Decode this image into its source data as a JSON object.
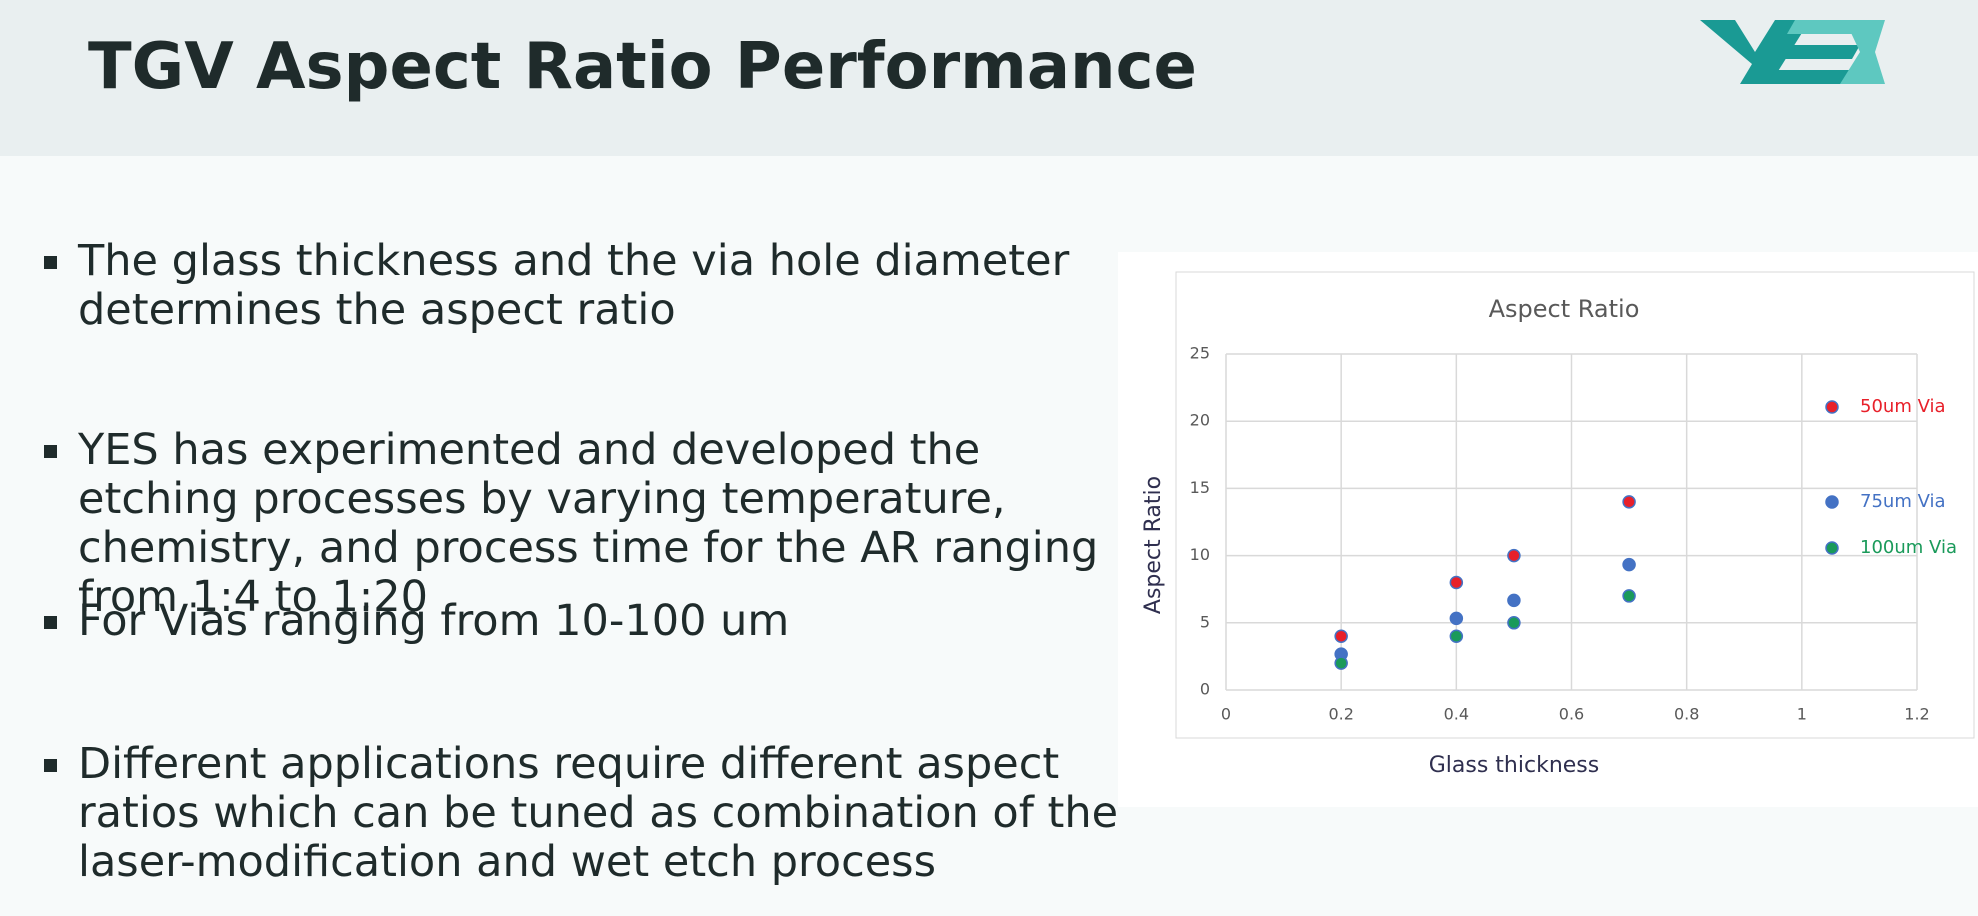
{
  "header": {
    "title": "TGV Aspect Ratio Performance"
  },
  "bullets": [
    "The glass thickness and the via hole diameter determines the aspect ratio",
    "YES has experimented and developed the etching processes by varying temperature, chemistry, and process time for the AR ranging from 1:4 to 1:20",
    "For Vias ranging from 10-100 um",
    "Different applications require different aspect ratios which can be tuned as combination of the laser-modification and wet etch process"
  ],
  "chart_data": {
    "type": "scatter",
    "title": "Aspect Ratio",
    "x_label": "Glass thickness",
    "y_label": "Aspect Ratio",
    "x": [
      0.2,
      0.4,
      0.5,
      0.7
    ],
    "series": [
      {
        "name": "50um Via",
        "color": "#e8202a",
        "values": [
          4,
          8,
          10,
          14
        ]
      },
      {
        "name": "75um Via",
        "color": "#4472c4",
        "values": [
          2.67,
          5.33,
          6.67,
          9.33
        ]
      },
      {
        "name": "100um Via",
        "color": "#1a9a5a",
        "values": [
          2,
          4,
          5,
          7
        ]
      }
    ],
    "xlim": [
      0,
      1.2
    ],
    "xticks": [
      0,
      0.2,
      0.4,
      0.6,
      0.8,
      1,
      1.2
    ],
    "ylim": [
      0,
      25
    ],
    "yticks": [
      0,
      5,
      10,
      15,
      20,
      25
    ],
    "grid": true
  }
}
